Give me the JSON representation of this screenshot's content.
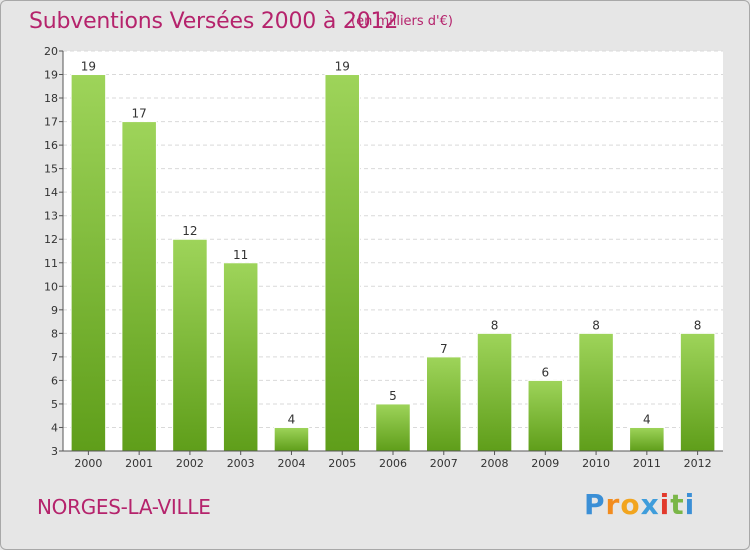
{
  "title": "Subventions Versées 2000 à 2012",
  "unit": "(en milliers d'€)",
  "commune": "NORGES-LA-VILLE",
  "logo": {
    "letters": [
      "P",
      "r",
      "o",
      "x",
      "i",
      "t",
      "i"
    ],
    "colors": [
      "#3b8fd6",
      "#f28c1f",
      "#f2a51f",
      "#3f9ddb",
      "#e23a2c",
      "#7ab648",
      "#3b8fd6"
    ]
  },
  "colors": {
    "accent": "#b5236c",
    "bar_light": "#9ed45a",
    "bar_dark": "#5f9e1a",
    "plot_bg": "#ffffff"
  },
  "chart_data": {
    "type": "bar",
    "title": "Subventions Versées 2000 à 2012",
    "subtitle": "(en milliers d'€)",
    "categories": [
      "2000",
      "2001",
      "2002",
      "2003",
      "2004",
      "2005",
      "2006",
      "2007",
      "2008",
      "2009",
      "2010",
      "2011",
      "2012"
    ],
    "values": [
      19,
      17,
      12,
      11,
      4,
      19,
      5,
      7,
      8,
      6,
      8,
      4,
      8
    ],
    "ylim": [
      3,
      20
    ],
    "yticks": [
      3,
      4,
      5,
      6,
      7,
      8,
      9,
      10,
      11,
      12,
      13,
      14,
      15,
      16,
      17,
      18,
      19,
      20
    ],
    "grid": true,
    "data_labels": true
  }
}
